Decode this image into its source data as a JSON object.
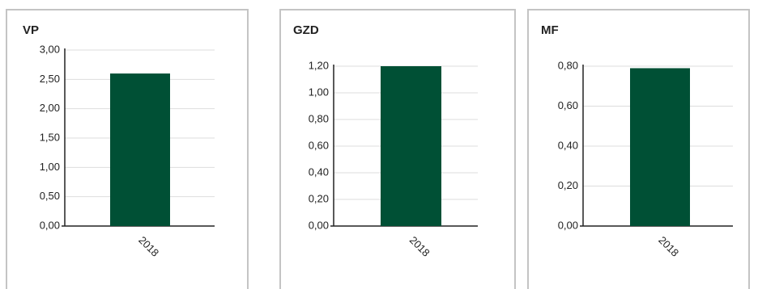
{
  "chart_data": [
    {
      "type": "bar",
      "title": "VP",
      "categories": [
        "2018"
      ],
      "values": [
        2.6
      ],
      "color": "#005035",
      "ylim": [
        0,
        3
      ],
      "yticks": [
        {
          "value": 0,
          "label": "0,00"
        },
        {
          "value": 0.5,
          "label": "0,50"
        },
        {
          "value": 1,
          "label": "1,00"
        },
        {
          "value": 1.5,
          "label": "1,50"
        },
        {
          "value": 2,
          "label": "2,00"
        },
        {
          "value": 2.5,
          "label": "2,50"
        },
        {
          "value": 3,
          "label": "3,00"
        }
      ],
      "grid": true
    },
    {
      "type": "bar",
      "title": "GZD",
      "categories": [
        "2018"
      ],
      "values": [
        1.2
      ],
      "color": "#005035",
      "ylim": [
        0,
        1.2
      ],
      "yticks": [
        {
          "value": 0,
          "label": "0,00"
        },
        {
          "value": 0.2,
          "label": "0,20"
        },
        {
          "value": 0.4,
          "label": "0,40"
        },
        {
          "value": 0.6,
          "label": "0,60"
        },
        {
          "value": 0.8,
          "label": "0,80"
        },
        {
          "value": 1,
          "label": "1,00"
        },
        {
          "value": 1.2,
          "label": "1,20"
        }
      ],
      "grid": true
    },
    {
      "type": "bar",
      "title": "MF",
      "categories": [
        "2018"
      ],
      "values": [
        0.79
      ],
      "color": "#005035",
      "ylim": [
        0,
        0.8
      ],
      "yticks": [
        {
          "value": 0,
          "label": "0,00"
        },
        {
          "value": 0.2,
          "label": "0,20"
        },
        {
          "value": 0.4,
          "label": "0,40"
        },
        {
          "value": 0.6,
          "label": "0,60"
        },
        {
          "value": 0.8,
          "label": "0,80"
        }
      ],
      "grid": true
    }
  ]
}
